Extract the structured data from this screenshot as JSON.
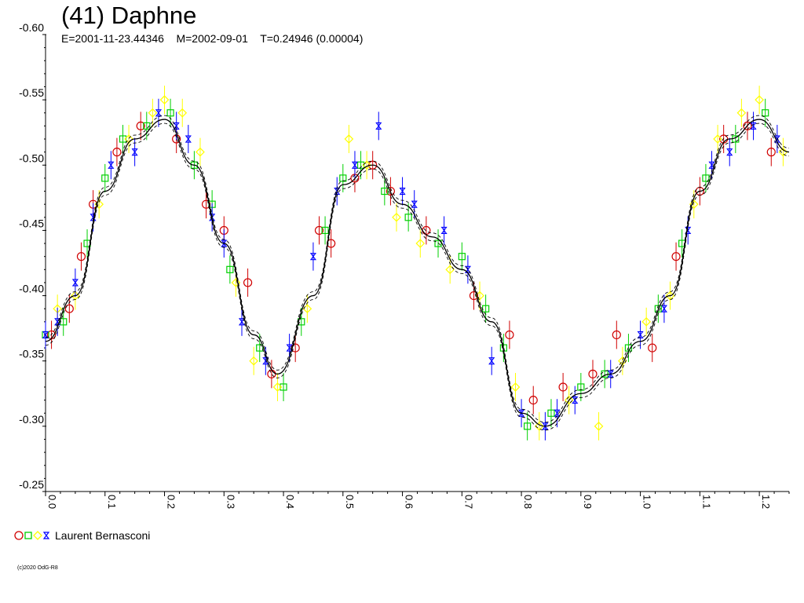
{
  "header": {
    "title": "(41) Daphne",
    "subtitle": "E=2001-11-23.44346    M=2002-09-01    T=0.24946 (0.00004)"
  },
  "legend": {
    "observer": "Laurent Bernasconi"
  },
  "footer": {
    "copyright": "(c)2020 OdG-R8"
  },
  "colors": {
    "red": "#d00000",
    "green": "#00d000",
    "yellow": "#ffff00",
    "blue": "#0000ff",
    "curve": "#000000",
    "axis": "#000000"
  },
  "chart_data": {
    "type": "scatter",
    "xlim": [
      0.0,
      1.25
    ],
    "ylim": [
      -0.6,
      -0.25
    ],
    "y_inverted": true,
    "grid": false,
    "x_ticks": [
      "0.0",
      "0.1",
      "0.2",
      "0.3",
      "0.4",
      "0.5",
      "0.6",
      "0.7",
      "0.8",
      "0.9",
      "1.0",
      "1.1",
      "1.2"
    ],
    "x_tick_values": [
      0.0,
      0.1,
      0.2,
      0.3,
      0.4,
      0.5,
      0.6,
      0.7,
      0.8,
      0.9,
      1.0,
      1.1,
      1.2
    ],
    "y_ticks": [
      "-0.60",
      "-0.55",
      "-0.50",
      "-0.45",
      "-0.40",
      "-0.35",
      "-0.30",
      "-0.25"
    ],
    "y_tick_values": [
      -0.6,
      -0.55,
      -0.5,
      -0.45,
      -0.4,
      -0.35,
      -0.3,
      -0.25
    ],
    "fit_curve": {
      "x": [
        0.0,
        0.05,
        0.1,
        0.15,
        0.2,
        0.25,
        0.3,
        0.35,
        0.39,
        0.45,
        0.5,
        0.55,
        0.6,
        0.65,
        0.7,
        0.75,
        0.8,
        0.84,
        0.9,
        0.95,
        1.0,
        1.05,
        1.1,
        1.15,
        1.2,
        1.25
      ],
      "y": [
        -0.365,
        -0.4,
        -0.48,
        -0.52,
        -0.535,
        -0.5,
        -0.44,
        -0.37,
        -0.34,
        -0.4,
        -0.485,
        -0.5,
        -0.47,
        -0.445,
        -0.42,
        -0.38,
        -0.31,
        -0.3,
        -0.325,
        -0.34,
        -0.365,
        -0.4,
        -0.48,
        -0.52,
        -0.535,
        -0.51
      ]
    },
    "series": [
      {
        "color": "red",
        "marker": "circle",
        "x": [
          0.01,
          0.04,
          0.06,
          0.08,
          0.12,
          0.16,
          0.22,
          0.27,
          0.3,
          0.34,
          0.38,
          0.42,
          0.46,
          0.48,
          0.52,
          0.55,
          0.58,
          0.64,
          0.72,
          0.78,
          0.82,
          0.87,
          0.92,
          0.96,
          1.02,
          1.06,
          1.1,
          1.14,
          1.18,
          1.22
        ],
        "y": [
          -0.37,
          -0.39,
          -0.43,
          -0.47,
          -0.51,
          -0.53,
          -0.52,
          -0.47,
          -0.45,
          -0.41,
          -0.34,
          -0.36,
          -0.45,
          -0.44,
          -0.49,
          -0.5,
          -0.48,
          -0.45,
          -0.4,
          -0.37,
          -0.32,
          -0.33,
          -0.34,
          -0.37,
          -0.36,
          -0.43,
          -0.48,
          -0.52,
          -0.53,
          -0.51
        ]
      },
      {
        "color": "green",
        "marker": "square",
        "x": [
          0.0,
          0.03,
          0.07,
          0.1,
          0.13,
          0.17,
          0.21,
          0.25,
          0.28,
          0.31,
          0.36,
          0.4,
          0.43,
          0.47,
          0.5,
          0.53,
          0.57,
          0.61,
          0.66,
          0.7,
          0.74,
          0.77,
          0.81,
          0.85,
          0.9,
          0.94,
          0.98,
          1.03,
          1.07,
          1.11,
          1.16,
          1.21
        ],
        "y": [
          -0.37,
          -0.38,
          -0.44,
          -0.49,
          -0.52,
          -0.53,
          -0.54,
          -0.5,
          -0.47,
          -0.42,
          -0.36,
          -0.33,
          -0.38,
          -0.45,
          -0.49,
          -0.5,
          -0.48,
          -0.46,
          -0.44,
          -0.43,
          -0.39,
          -0.36,
          -0.3,
          -0.31,
          -0.33,
          -0.34,
          -0.36,
          -0.39,
          -0.44,
          -0.49,
          -0.52,
          -0.54
        ]
      },
      {
        "color": "yellow",
        "marker": "diamond",
        "x": [
          0.02,
          0.05,
          0.09,
          0.14,
          0.18,
          0.2,
          0.23,
          0.26,
          0.32,
          0.35,
          0.39,
          0.44,
          0.51,
          0.54,
          0.59,
          0.63,
          0.68,
          0.73,
          0.79,
          0.83,
          0.88,
          0.93,
          0.97,
          1.01,
          1.05,
          1.09,
          1.13,
          1.17,
          1.2,
          1.24
        ],
        "y": [
          -0.39,
          -0.4,
          -0.47,
          -0.52,
          -0.54,
          -0.55,
          -0.54,
          -0.51,
          -0.41,
          -0.35,
          -0.33,
          -0.39,
          -0.52,
          -0.5,
          -0.46,
          -0.44,
          -0.42,
          -0.4,
          -0.33,
          -0.3,
          -0.32,
          -0.3,
          -0.35,
          -0.38,
          -0.4,
          -0.47,
          -0.52,
          -0.54,
          -0.55,
          -0.51
        ]
      },
      {
        "color": "blue",
        "marker": "hourglass",
        "x": [
          0.0,
          0.02,
          0.05,
          0.08,
          0.11,
          0.15,
          0.19,
          0.22,
          0.24,
          0.28,
          0.3,
          0.33,
          0.37,
          0.41,
          0.45,
          0.49,
          0.52,
          0.56,
          0.6,
          0.62,
          0.67,
          0.71,
          0.75,
          0.8,
          0.84,
          0.86,
          0.89,
          0.95,
          1.0,
          1.04,
          1.08,
          1.12,
          1.15,
          1.19,
          1.23
        ],
        "y": [
          -0.37,
          -0.38,
          -0.41,
          -0.46,
          -0.5,
          -0.51,
          -0.54,
          -0.53,
          -0.52,
          -0.46,
          -0.44,
          -0.38,
          -0.35,
          -0.36,
          -0.43,
          -0.48,
          -0.5,
          -0.53,
          -0.48,
          -0.47,
          -0.45,
          -0.42,
          -0.35,
          -0.31,
          -0.3,
          -0.31,
          -0.32,
          -0.34,
          -0.37,
          -0.39,
          -0.45,
          -0.5,
          -0.51,
          -0.53,
          -0.52
        ]
      }
    ]
  }
}
